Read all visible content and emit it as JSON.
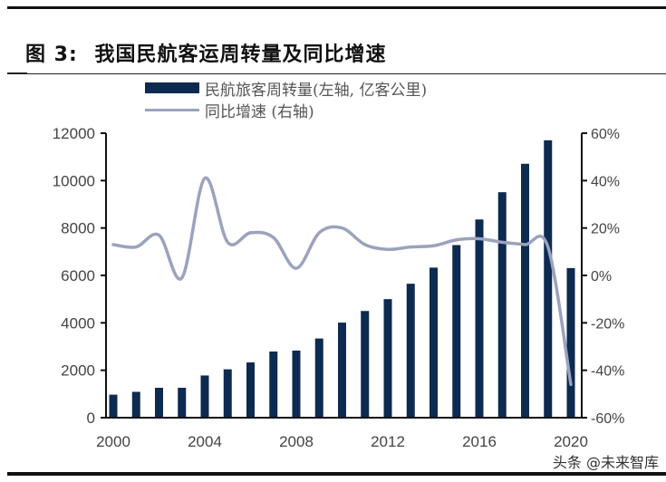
{
  "figure": {
    "label": "图 3:",
    "title": "我国民航客运周转量及同比增速",
    "watermark": "头条 @未来智库"
  },
  "legend": [
    {
      "label": "民航旅客周转量(左轴, 亿客公里)",
      "type": "bar",
      "color": "#0d2a50"
    },
    {
      "label": "同比增速 (右轴)",
      "type": "line",
      "color": "#9aa3bd"
    }
  ],
  "chart_data": {
    "type": "bar",
    "title": "我国民航客运周转量及同比增速",
    "xlabel": "",
    "ylabel": "民航旅客周转量 (亿客公里)",
    "y2label": "同比增速",
    "categories": [
      2000,
      2001,
      2002,
      2003,
      2004,
      2005,
      2006,
      2007,
      2008,
      2009,
      2010,
      2011,
      2012,
      2013,
      2014,
      2015,
      2016,
      2017,
      2018,
      2019,
      2020
    ],
    "x_tick_labels": [
      "2000",
      "2004",
      "2008",
      "2012",
      "2016",
      "2020"
    ],
    "ylim": [
      0,
      12000
    ],
    "y_ticks": [
      "0",
      "2000",
      "4000",
      "6000",
      "8000",
      "10000",
      "12000"
    ],
    "y2lim": [
      -60,
      60
    ],
    "y2_ticks": [
      "-60%",
      "-40%",
      "-20%",
      "0%",
      "20%",
      "40%",
      "60%"
    ],
    "grid": false,
    "legend_position": "top",
    "series": [
      {
        "name": "民航旅客周转量(左轴, 亿客公里)",
        "type": "bar",
        "axis": "left",
        "color": "#0d2a50",
        "values": [
          970,
          1090,
          1260,
          1260,
          1780,
          2040,
          2330,
          2790,
          2830,
          3340,
          4010,
          4500,
          5000,
          5650,
          6330,
          7280,
          8360,
          9510,
          10710,
          11700,
          6310
        ]
      },
      {
        "name": "同比增速 (右轴)",
        "type": "line",
        "axis": "right",
        "unit": "%",
        "color": "#9aa3bd",
        "values": [
          13,
          12,
          17,
          -1,
          41,
          14,
          18,
          16,
          3,
          18,
          20,
          13,
          11,
          12,
          12.5,
          15,
          15.5,
          14,
          13,
          12,
          -46
        ]
      }
    ]
  }
}
